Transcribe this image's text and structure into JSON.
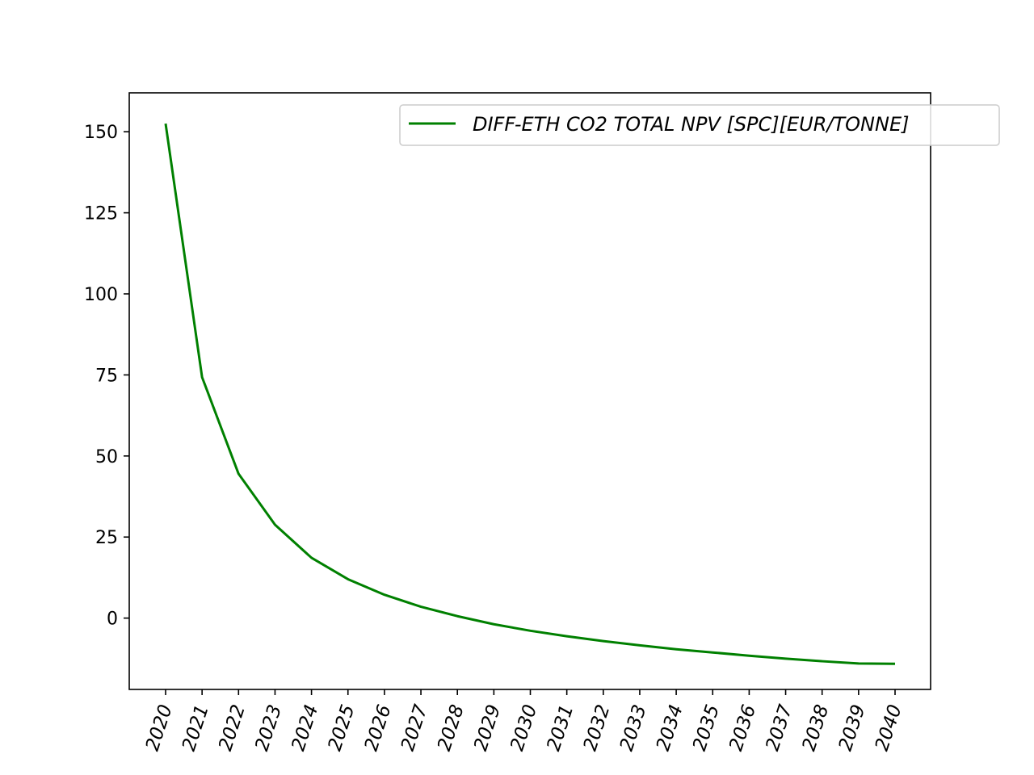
{
  "chart_data": {
    "type": "line",
    "title": "",
    "xlabel": "",
    "ylabel": "",
    "categories": [
      "2020",
      "2021",
      "2022",
      "2023",
      "2024",
      "2025",
      "2026",
      "2027",
      "2028",
      "2029",
      "2030",
      "2031",
      "2032",
      "2033",
      "2034",
      "2035",
      "2036",
      "2037",
      "2038",
      "2039",
      "2040"
    ],
    "series": [
      {
        "name": "DIFF-ETH CO2 TOTAL NPV [SPC][EUR/TONNE]",
        "color": "#008000",
        "values": [
          152.5,
          74.3,
          44.5,
          28.8,
          18.6,
          12.0,
          7.2,
          3.5,
          0.6,
          -1.9,
          -3.9,
          -5.6,
          -7.1,
          -8.4,
          -9.6,
          -10.6,
          -11.6,
          -12.5,
          -13.3,
          -14.0,
          -14.1
        ]
      }
    ],
    "ylim": [
      -22,
      162
    ],
    "yticks": [
      0,
      25,
      50,
      75,
      100,
      125,
      150
    ],
    "grid": false,
    "legend_position": "top-right"
  }
}
